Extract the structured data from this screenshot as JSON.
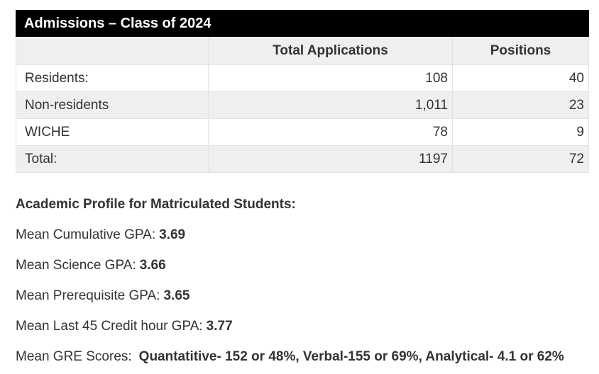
{
  "table": {
    "title": "Admissions – Class of 2024",
    "columns": {
      "label": "",
      "applications": "Total Applications",
      "positions": "Positions"
    },
    "rows": [
      {
        "label": "Residents:",
        "applications": "108",
        "positions": "40"
      },
      {
        "label": "Non-residents",
        "applications": "1,011",
        "positions": "23"
      },
      {
        "label": "WICHE",
        "applications": "78",
        "positions": "9"
      },
      {
        "label": "Total:",
        "applications": "1197",
        "positions": "72"
      }
    ]
  },
  "profile": {
    "heading": "Academic Profile for Matriculated Students:",
    "stats": [
      {
        "label": "Mean Cumulative GPA:",
        "value": "3.69"
      },
      {
        "label": "Mean Science GPA:",
        "value": "3.66"
      },
      {
        "label": "Mean Prerequisite GPA:",
        "value": "3.65"
      },
      {
        "label": "Mean Last 45 Credit hour GPA:",
        "value": "3.77"
      },
      {
        "label": "Mean GRE Scores:",
        "value": "Quantatitive- 152 or 48%, Verbal-155 or 69%, Analytical- 4.1 or 62%"
      }
    ]
  },
  "colors": {
    "header_bg": "#000000",
    "header_text": "#ffffff",
    "shaded_row_bg": "#efefef",
    "border": "#e2e2e2",
    "body_text": "#333333"
  }
}
